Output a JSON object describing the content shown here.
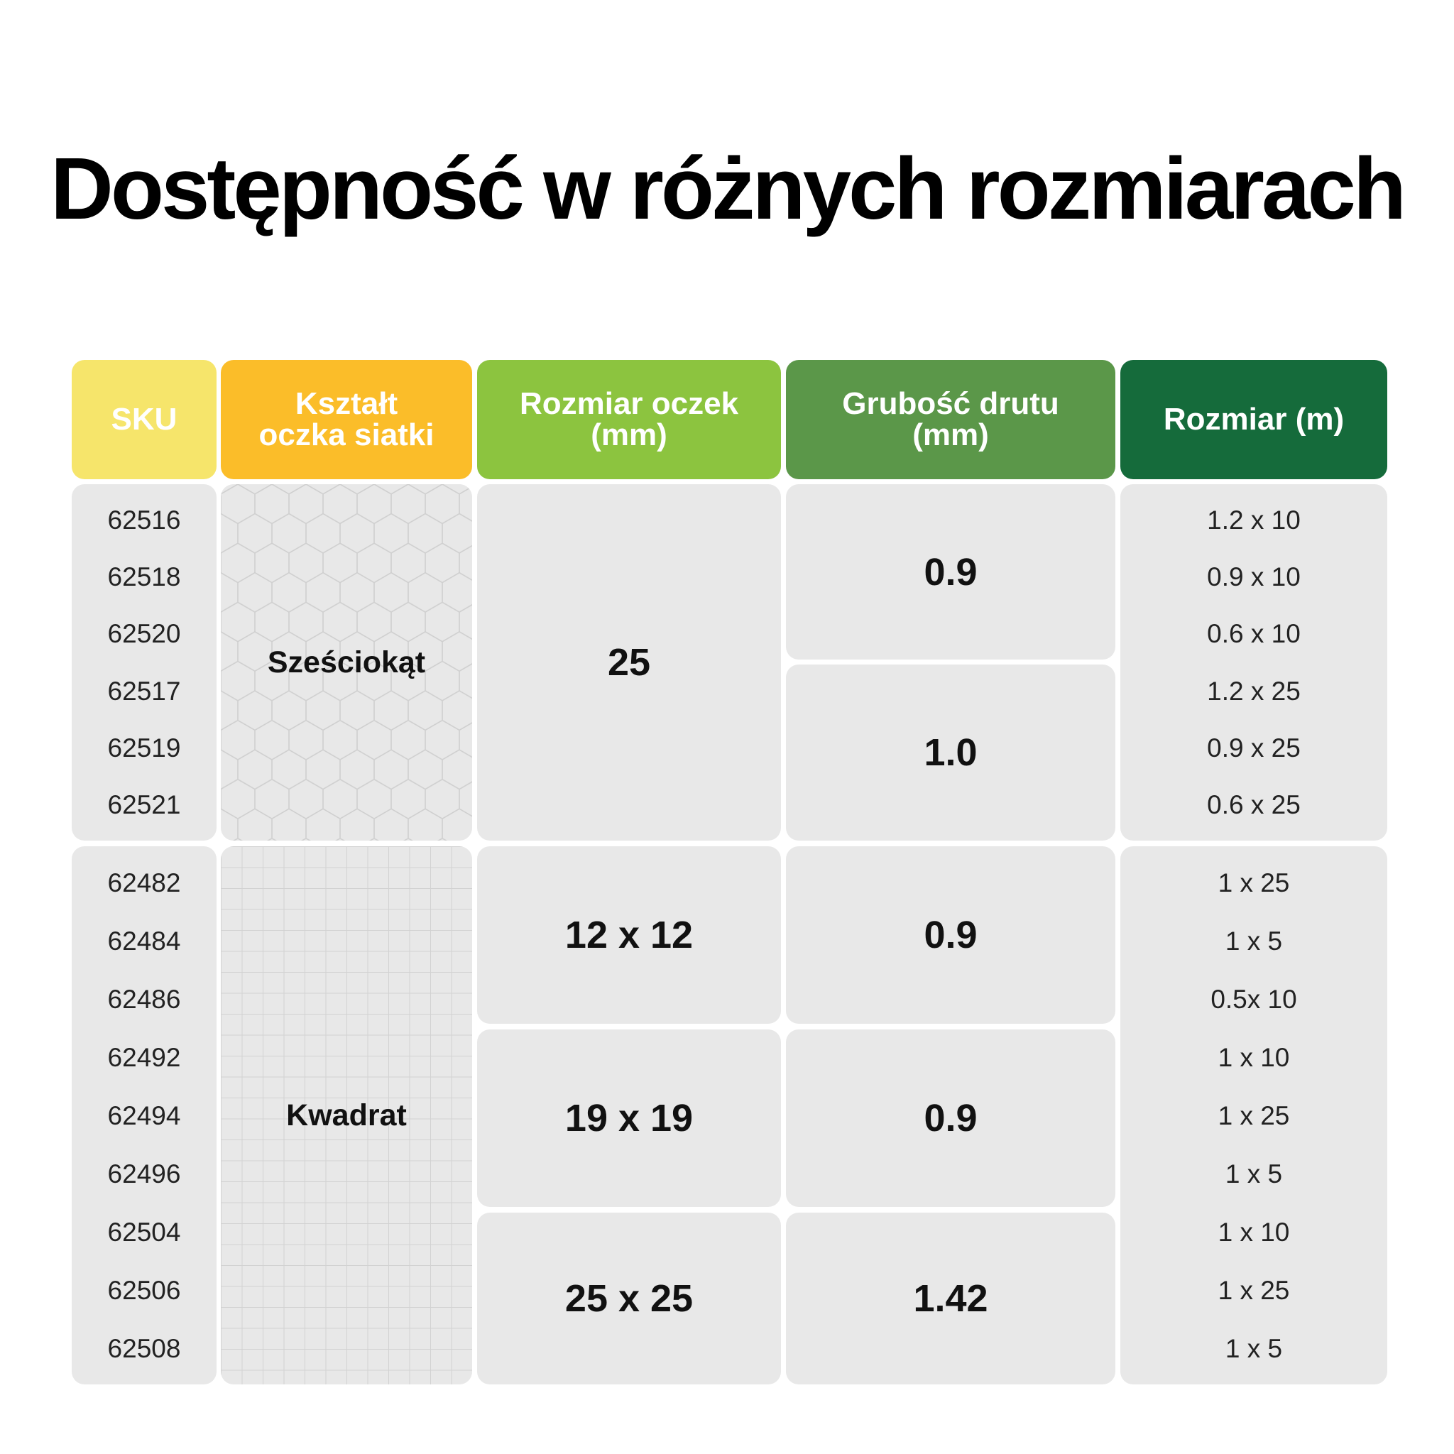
{
  "title": "Dostępność w różnych rozmiarach",
  "headers": {
    "sku": "SKU",
    "shape": "Kształt\noczka siatki",
    "mesh": "Rozmiar oczek\n(mm)",
    "wire": "Grubość drutu\n(mm)",
    "size": "Rozmiar (m)"
  },
  "colors": {
    "sku": "#f6e56b",
    "shape": "#fbbd29",
    "mesh": "#8cc43f",
    "wire": "#5b9749",
    "size": "#156b3b",
    "cell": "#e8e8e8"
  },
  "groups": [
    {
      "shape": "Sześciokąt",
      "shape_icon": "hexagon-mesh-pattern",
      "mesh_sizes": [
        "25"
      ],
      "wire_thickness": [
        "0.9",
        "1.0"
      ],
      "skus": [
        "62516",
        "62518",
        "62520",
        "62517",
        "62519",
        "62521"
      ],
      "sizes": [
        "1.2 x 10",
        "0.9 x 10",
        "0.6 x 10",
        "1.2 x 25",
        "0.9 x 25",
        "0.6 x 25"
      ]
    },
    {
      "shape": "Kwadrat",
      "shape_icon": "square-mesh-pattern",
      "mesh_sizes": [
        "12 x 12",
        "19 x 19",
        "25 x 25"
      ],
      "wire_thickness": [
        "0.9",
        "0.9",
        "1.42"
      ],
      "skus": [
        "62482",
        "62484",
        "62486",
        "62492",
        "62494",
        "62496",
        "62504",
        "62506",
        "62508"
      ],
      "sizes": [
        "1 x 25",
        "1 x 5",
        "0.5x 10",
        "1 x 10",
        "1 x 25",
        "1 x 5",
        "1 x 10",
        "1 x 25",
        "1 x 5"
      ]
    }
  ]
}
